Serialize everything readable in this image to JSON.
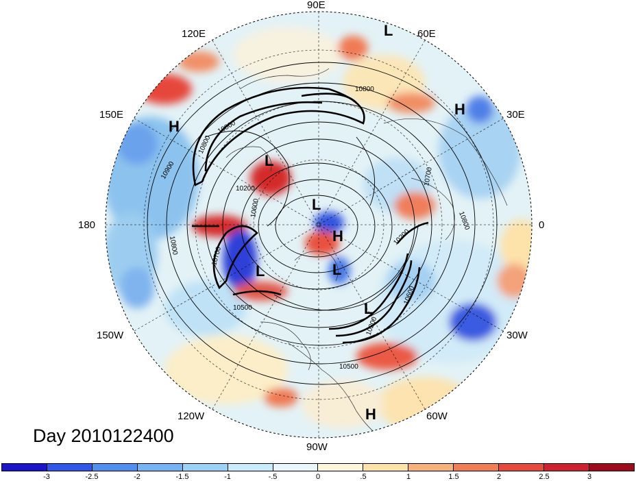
{
  "title": "Day 2010122400",
  "longitude_labels": {
    "lon_90e": "90E",
    "lon_60e": "60E",
    "lon_30e": "30E",
    "lon_0": "0",
    "lon_30w": "30W",
    "lon_60w": "60W",
    "lon_90w": "90W",
    "lon_120w": "120W",
    "lon_150w": "150W",
    "lon_180": "180",
    "lon_150e": "150E",
    "lon_120e": "120E"
  },
  "pressure_centers": [
    {
      "type": "L",
      "label": "L"
    },
    {
      "type": "H",
      "label": "H"
    },
    {
      "type": "H",
      "label": "H"
    },
    {
      "type": "L",
      "label": "L"
    },
    {
      "type": "L",
      "label": "L"
    },
    {
      "type": "H",
      "label": "H"
    },
    {
      "type": "L",
      "label": "L"
    },
    {
      "type": "L",
      "label": "L"
    },
    {
      "type": "L",
      "label": "L"
    },
    {
      "type": "H",
      "label": "H"
    }
  ],
  "contour_labels": [
    "10800",
    "10800",
    "10900",
    "10800",
    "10200",
    "10600",
    "10500",
    "10700",
    "10200",
    "10500",
    "10600",
    "10200",
    "10800",
    "10700",
    "10800"
  ],
  "colorbar": {
    "ticks": [
      "-3",
      "-2.5",
      "-2",
      "-1.5",
      "-1",
      "-.5",
      "0",
      ".5",
      "1",
      "1.5",
      "2",
      "2.5",
      "3"
    ],
    "colors": [
      "#1b14c8",
      "#2f57e8",
      "#4f8ff0",
      "#74b3f4",
      "#9ad2f8",
      "#c7ecfb",
      "#e9f7fc",
      "#fdf6d8",
      "#fde3a8",
      "#f7b27a",
      "#f27c54",
      "#e64a3c",
      "#cf2030",
      "#9e0a1c"
    ]
  }
}
